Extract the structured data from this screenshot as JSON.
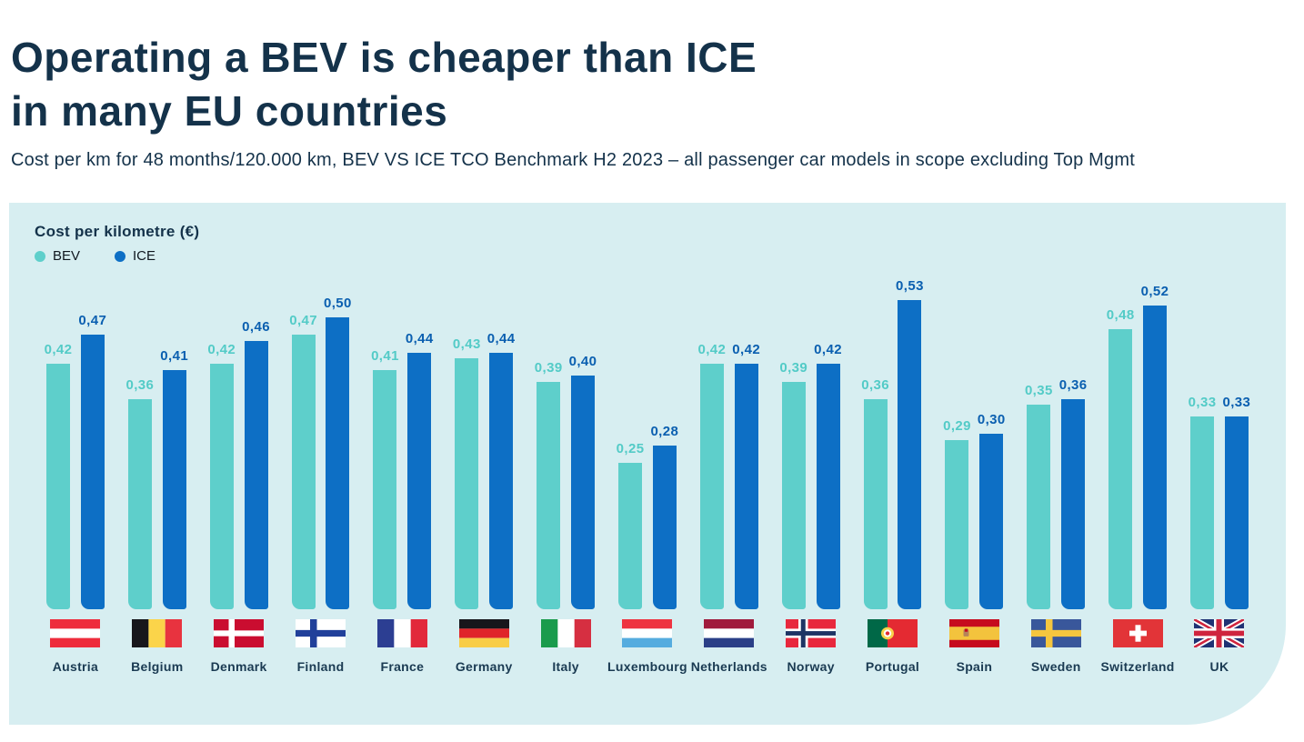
{
  "header": {
    "title_line1": "Operating a BEV is cheaper than ICE",
    "title_line2": "in many EU countries",
    "subtitle": "Cost per km for 48 months/120.000 km, BEV VS ICE TCO Benchmark H2 2023 – all passenger car models in scope excluding Top Mgmt"
  },
  "panel": {
    "chart_title": "Cost per kilometre (€)",
    "legend": [
      {
        "label": "BEV",
        "color": "#5ecfcb"
      },
      {
        "label": "ICE",
        "color": "#0d6fc5"
      }
    ]
  },
  "colors": {
    "bev": "#5ecfcb",
    "ice": "#0d6fc5",
    "bev_value_label": "#53cbc7",
    "ice_value_label": "#0a5fb0",
    "panel_background": "#d7eef1",
    "heading": "#14324a",
    "country_label": "#1a3a52"
  },
  "chart_data": {
    "type": "bar",
    "title": "Cost per kilometre (€)",
    "ylabel": "Cost per kilometre (€)",
    "xlabel": "",
    "ylim": [
      0,
      0.55
    ],
    "grid": false,
    "legend_position": "top-left",
    "decimal_separator": ",",
    "categories": [
      "Austria",
      "Belgium",
      "Denmark",
      "Finland",
      "France",
      "Germany",
      "Italy",
      "Luxembourg",
      "Netherlands",
      "Norway",
      "Portugal",
      "Spain",
      "Sweden",
      "Switzerland",
      "UK"
    ],
    "flags": [
      "austria",
      "belgium",
      "denmark",
      "finland",
      "france",
      "germany",
      "italy",
      "luxembourg",
      "netherlands",
      "norway",
      "portugal",
      "spain",
      "sweden",
      "switzerland",
      "uk"
    ],
    "series": [
      {
        "name": "BEV",
        "color": "#5ecfcb",
        "values": [
          0.42,
          0.36,
          0.42,
          0.47,
          0.41,
          0.43,
          0.39,
          0.25,
          0.42,
          0.39,
          0.36,
          0.29,
          0.35,
          0.48,
          0.33
        ]
      },
      {
        "name": "ICE",
        "color": "#0d6fc5",
        "values": [
          0.47,
          0.41,
          0.46,
          0.5,
          0.44,
          0.44,
          0.4,
          0.28,
          0.42,
          0.42,
          0.53,
          0.3,
          0.36,
          0.52,
          0.33
        ]
      }
    ],
    "value_labels": [
      [
        "0,42",
        "0,36",
        "0,42",
        "0,47",
        "0,41",
        "0,43",
        "0,39",
        "0,25",
        "0,42",
        "0,39",
        "0,36",
        "0,29",
        "0,35",
        "0,48",
        "0,33"
      ],
      [
        "0,47",
        "0,41",
        "0,46",
        "0,50",
        "0,44",
        "0,44",
        "0,40",
        "0,28",
        "0,42",
        "0,42",
        "0,53",
        "0,30",
        "0,36",
        "0,52",
        "0,33"
      ]
    ]
  }
}
